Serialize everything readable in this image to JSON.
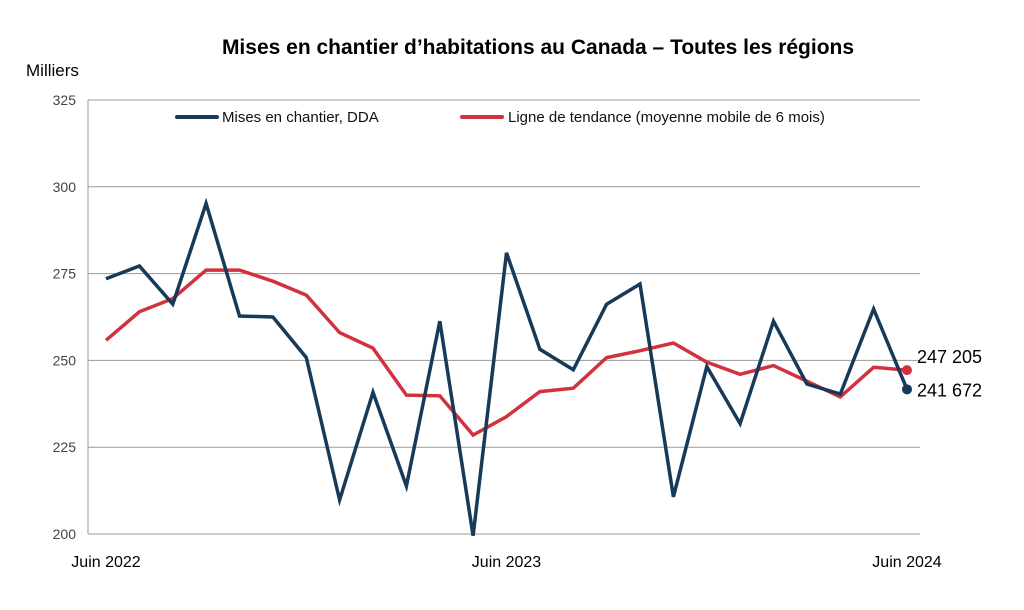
{
  "chart_data": {
    "type": "line",
    "title": "Mises en chantier d’habitations au Canada – Toutes les régions",
    "ylabel": "Milliers",
    "ylim": [
      200,
      325
    ],
    "yticks": [
      "200",
      "225",
      "250",
      "275",
      "300",
      "325"
    ],
    "x_tick_labels": [
      {
        "index": 0,
        "label": "Juin 2022"
      },
      {
        "index": 12,
        "label": "Juin 2023"
      },
      {
        "index": 24,
        "label": "Juin 2024"
      }
    ],
    "grid": true,
    "legend_position": "top",
    "series": [
      {
        "name": "Mises en chantier, DDA",
        "color": "#163a57",
        "values": [
          273.5,
          277.2,
          266.2,
          295.2,
          262.8,
          262.5,
          250.8,
          209.8,
          240.8,
          213.8,
          261.3,
          199.5,
          281.0,
          253.2,
          247.3,
          266.2,
          272.0,
          210.7,
          248.2,
          231.8,
          261.3,
          243.2,
          240.3,
          264.8,
          241.672
        ]
      },
      {
        "name": "Ligne de tendance (moyenne mobile de 6 mois)",
        "color": "#d1323e",
        "values": [
          255.8,
          264.0,
          267.8,
          276.0,
          276.0,
          272.8,
          268.8,
          258.0,
          253.5,
          240.0,
          239.8,
          228.5,
          233.8,
          241.0,
          242.0,
          250.8,
          252.8,
          255.0,
          249.5,
          246.0,
          248.5,
          244.0,
          239.5,
          248.0,
          247.205
        ]
      }
    ],
    "end_labels": [
      "241 672",
      "247 205"
    ]
  }
}
